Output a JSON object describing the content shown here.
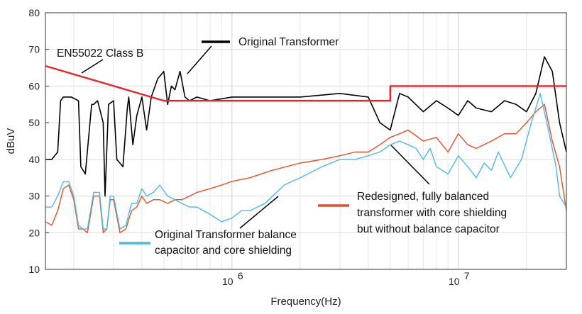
{
  "chart_data": {
    "type": "line",
    "xlabel": "Frequency(Hz)",
    "ylabel": "dBuV",
    "xscale": "log",
    "xlim": [
      150000,
      30000000
    ],
    "ylim": [
      10,
      80
    ],
    "grid": true,
    "x_ticks": [
      {
        "value": 1000000,
        "base": "10",
        "exp": "6"
      },
      {
        "value": 10000000,
        "base": "10",
        "exp": "7"
      }
    ],
    "y_ticks": [
      "10",
      "20",
      "30",
      "40",
      "50",
      "60",
      "70",
      "80"
    ],
    "colors": {
      "limit": "#e8242c",
      "original": "#000000",
      "balanced": "#4cb8e6",
      "redesigned": "#e0502a"
    },
    "series": [
      {
        "name": "EN55022 Class B",
        "color": "#e8242c",
        "x": [
          150000,
          500000,
          500000,
          5000000,
          5000000,
          30000000
        ],
        "y": [
          65.5,
          56,
          56,
          56,
          60,
          60
        ]
      },
      {
        "name": "Original Transformer",
        "color": "#000000",
        "x": [
          150000,
          160000,
          170000,
          175000,
          180000,
          195000,
          210000,
          215000,
          225000,
          240000,
          245000,
          255000,
          270000,
          275000,
          285000,
          300000,
          310000,
          330000,
          345000,
          350000,
          365000,
          380000,
          400000,
          420000,
          440000,
          470000,
          500000,
          520000,
          540000,
          560000,
          590000,
          620000,
          650000,
          700000,
          800000,
          1000000,
          1500000,
          2000000,
          3000000,
          4000000,
          4500000,
          5000000,
          5500000,
          6000000,
          7000000,
          8000000,
          9000000,
          10000000,
          11000000,
          12000000,
          14000000,
          16000000,
          18000000,
          20000000,
          22000000,
          24000000,
          26000000,
          28000000,
          30000000
        ],
        "y": [
          40,
          40,
          42,
          56,
          57,
          57,
          56,
          38,
          36,
          55,
          55,
          56,
          50,
          30,
          55,
          56,
          40,
          38,
          54,
          57,
          44,
          52,
          57,
          48,
          57,
          62,
          64,
          55,
          60,
          59,
          64,
          57,
          56,
          57,
          56,
          57,
          57,
          57,
          58,
          57,
          50,
          48,
          58,
          57,
          53,
          56,
          54,
          52,
          56,
          54,
          53,
          56,
          55,
          53,
          58,
          68,
          64,
          50,
          42
        ]
      },
      {
        "name": "Original Transformer balance capacitor and core shielding",
        "color": "#4cb8e6",
        "x": [
          150000,
          160000,
          170000,
          180000,
          190000,
          200000,
          210000,
          220000,
          230000,
          245000,
          260000,
          270000,
          280000,
          290000,
          300000,
          320000,
          340000,
          360000,
          380000,
          400000,
          420000,
          450000,
          480000,
          520000,
          560000,
          600000,
          650000,
          700000,
          800000,
          900000,
          1000000,
          1100000,
          1200000,
          1400000,
          1700000,
          2000000,
          2500000,
          3000000,
          3500000,
          4000000,
          4500000,
          5000000,
          5500000,
          6000000,
          6500000,
          7000000,
          7500000,
          8000000,
          9000000,
          10000000,
          11000000,
          12000000,
          13000000,
          14000000,
          15000000,
          17000000,
          19000000,
          21000000,
          23000000,
          25000000,
          27000000,
          28000000,
          30000000
        ],
        "y": [
          27,
          27,
          30,
          34,
          34,
          30,
          22,
          21,
          21,
          31,
          31,
          21,
          21,
          30,
          30,
          21,
          22,
          28,
          28,
          32,
          30,
          31,
          33,
          30,
          29,
          28,
          27,
          27,
          25,
          23,
          24,
          26,
          26,
          28,
          33,
          35,
          38,
          40,
          40,
          41,
          42,
          44,
          45,
          44,
          43,
          40,
          43,
          38,
          36,
          41,
          38,
          35,
          39,
          37,
          42,
          35,
          40,
          50,
          58,
          48,
          38,
          30,
          27
        ]
      },
      {
        "name": "Redesigned, fully balanced transformer with core shielding but without balance capacitor",
        "color": "#e0502a",
        "x": [
          150000,
          160000,
          170000,
          180000,
          190000,
          200000,
          210000,
          220000,
          230000,
          245000,
          260000,
          270000,
          280000,
          290000,
          300000,
          320000,
          340000,
          360000,
          380000,
          400000,
          420000,
          450000,
          480000,
          520000,
          560000,
          600000,
          650000,
          700000,
          800000,
          900000,
          1000000,
          1200000,
          1500000,
          2000000,
          2500000,
          3000000,
          3500000,
          4000000,
          4500000,
          5000000,
          5500000,
          6000000,
          7000000,
          8000000,
          9000000,
          10000000,
          11000000,
          12000000,
          14000000,
          16000000,
          18000000,
          20000000,
          22000000,
          24000000,
          26000000,
          28000000,
          30000000
        ],
        "y": [
          23,
          22,
          26,
          32,
          33,
          29,
          21,
          21,
          20,
          30,
          30,
          20,
          21,
          29,
          29,
          20,
          21,
          26,
          27,
          30,
          28,
          29,
          29,
          28,
          29,
          29,
          30,
          31,
          32,
          33,
          34,
          35,
          37,
          39,
          40,
          41,
          42,
          42,
          44,
          46,
          47,
          48,
          45,
          46,
          42,
          47,
          44,
          43,
          45,
          47,
          47,
          50,
          53,
          55,
          45,
          38,
          26
        ]
      }
    ],
    "annotations": {
      "limit": "EN55022 Class B",
      "original": "Original Transformer",
      "balanced_line1": "Original Transformer balance",
      "balanced_line2": "capacitor and core shielding",
      "redesigned_line1": "Redesigned, fully balanced",
      "redesigned_line2": "transformer with core shielding",
      "redesigned_line3": "but without balance capacitor"
    }
  }
}
